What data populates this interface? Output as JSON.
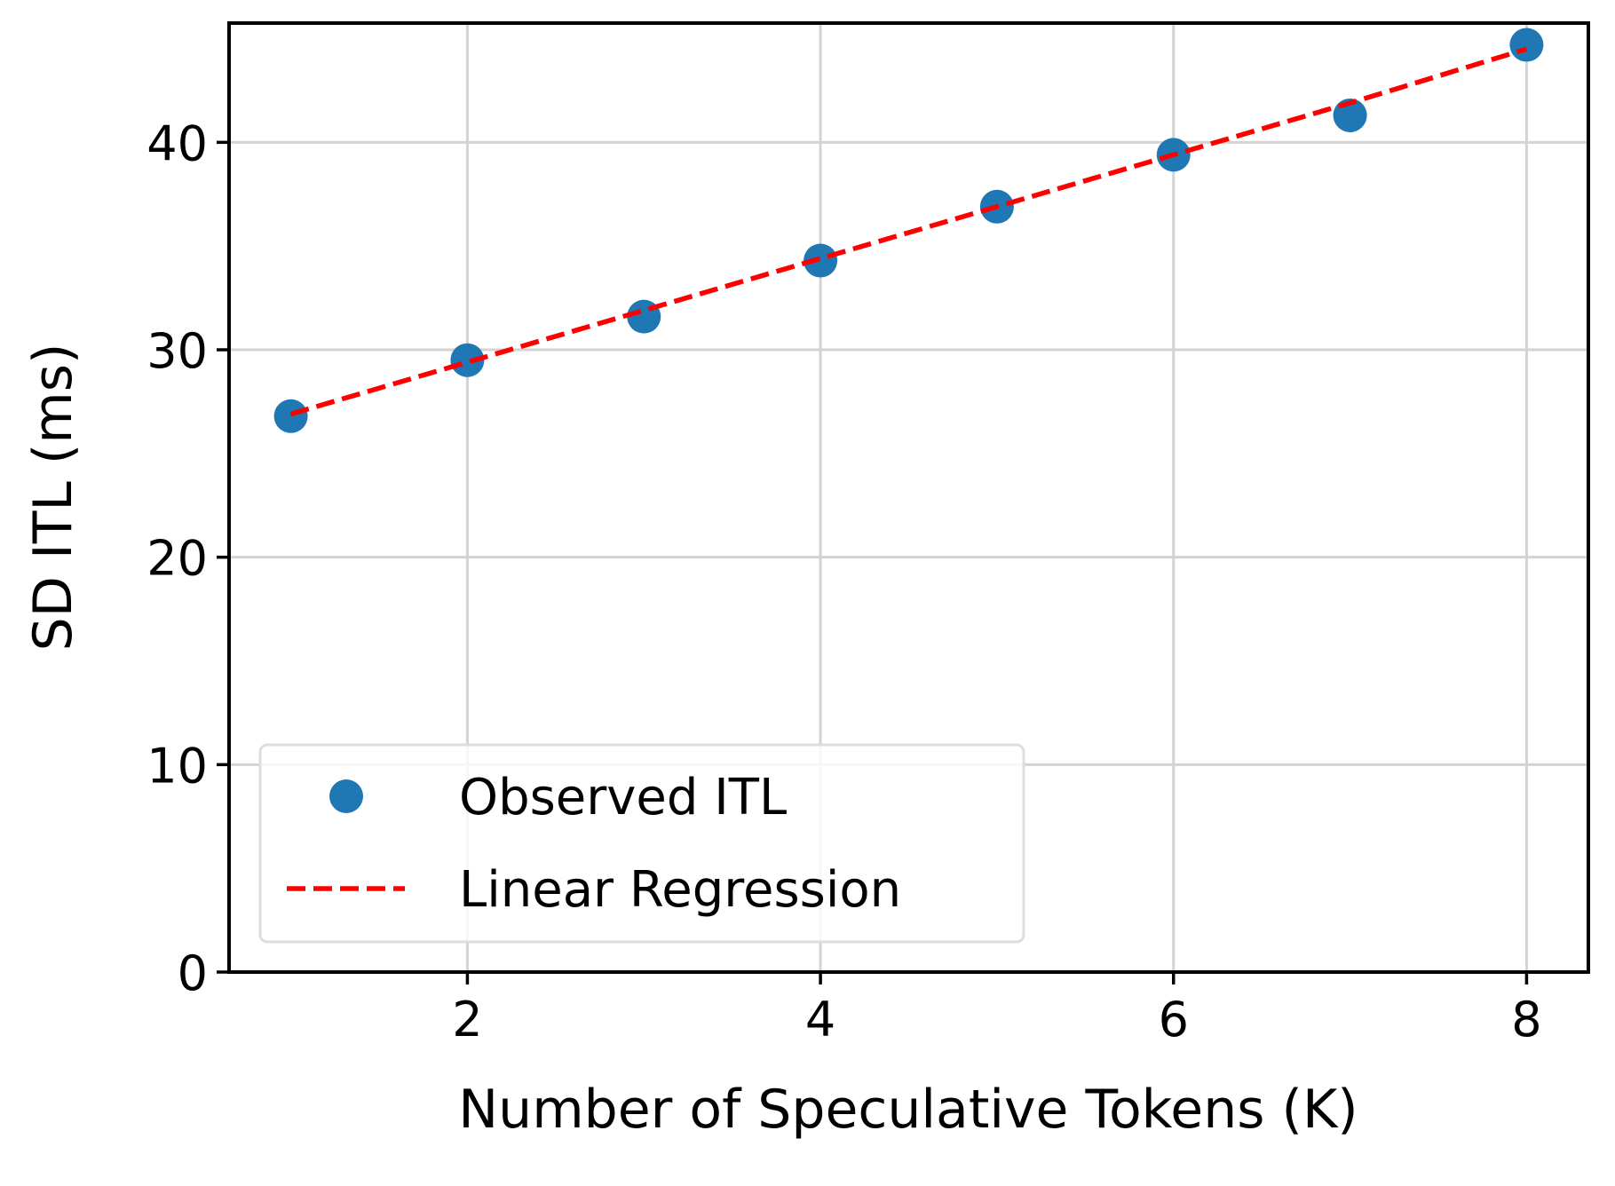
{
  "chart_data": {
    "type": "scatter",
    "xlabel": "Number of Speculative Tokens (K)",
    "ylabel": "SD ITL (ms)",
    "x": [
      1,
      2,
      3,
      4,
      5,
      6,
      7,
      8
    ],
    "series": [
      {
        "name": "Observed ITL",
        "kind": "scatter",
        "color": "#1f77b4",
        "values": [
          26.8,
          29.5,
          31.6,
          34.3,
          36.9,
          39.4,
          41.3,
          44.7
        ]
      },
      {
        "name": "Linear Regression",
        "kind": "line",
        "linestyle": "dashed",
        "color": "#ff0000",
        "values": [
          26.9,
          29.4,
          31.9,
          34.4,
          36.9,
          39.4,
          41.9,
          44.5
        ]
      }
    ],
    "xlim": [
      0.65,
      8.35
    ],
    "xticks": [
      2,
      4,
      6,
      8
    ],
    "ylim": [
      0,
      45.75
    ],
    "yticks": [
      0,
      10,
      20,
      30,
      40
    ],
    "grid": true,
    "legend": "lower left"
  }
}
